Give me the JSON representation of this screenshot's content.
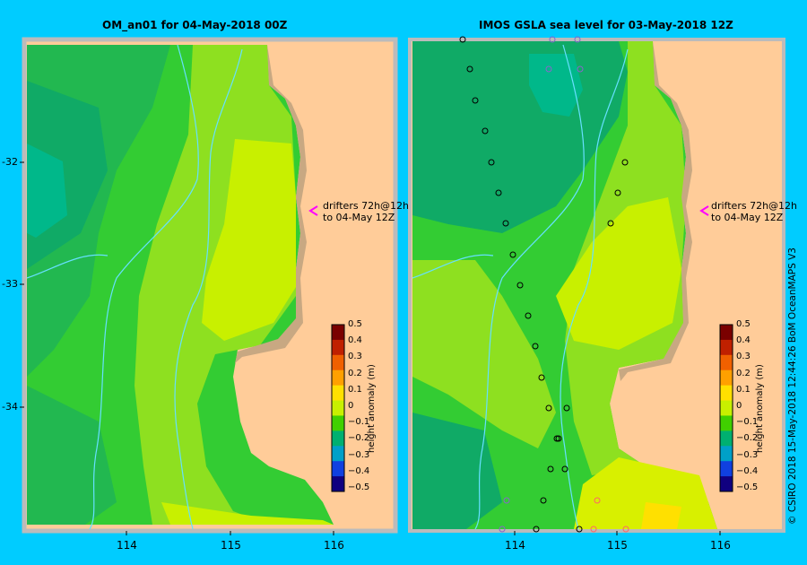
{
  "panels": {
    "left": {
      "title": "OM_an01  for 04-May-2018 00Z"
    },
    "right": {
      "title": "IMOS  GSLA sea level   for 03-May-2018 12Z"
    }
  },
  "latitude_ticks": [
    "-32",
    "-33",
    "-34"
  ],
  "longitude_ticks": [
    "114",
    "115",
    "116"
  ],
  "drifter_note": {
    "line1": "drifters 72h@12h",
    "line2": "to 04-May 12Z"
  },
  "colorbar": {
    "title": "height anomaly  (m)",
    "tick_labels": [
      "0.5",
      "0.4",
      "0.3",
      "0.2",
      "0.1",
      "0",
      "−0.1",
      "−0.2",
      "−0.3",
      "−0.4",
      "−0.5"
    ],
    "colors": [
      "#7a0000",
      "#c02000",
      "#f06000",
      "#ffa000",
      "#ffe000",
      "#c8f000",
      "#40d000",
      "#00b070",
      "#00a0c8",
      "#1040e0",
      "#100080"
    ]
  },
  "credit": "© CSIRO 2018   15-May-2018 12:44:26 BoM OceanMAPS V3",
  "colors": {
    "background": "#00ccff",
    "land": "#ffcc99",
    "shelf": "#c8a882",
    "river_contour": "#66e0ff"
  }
}
